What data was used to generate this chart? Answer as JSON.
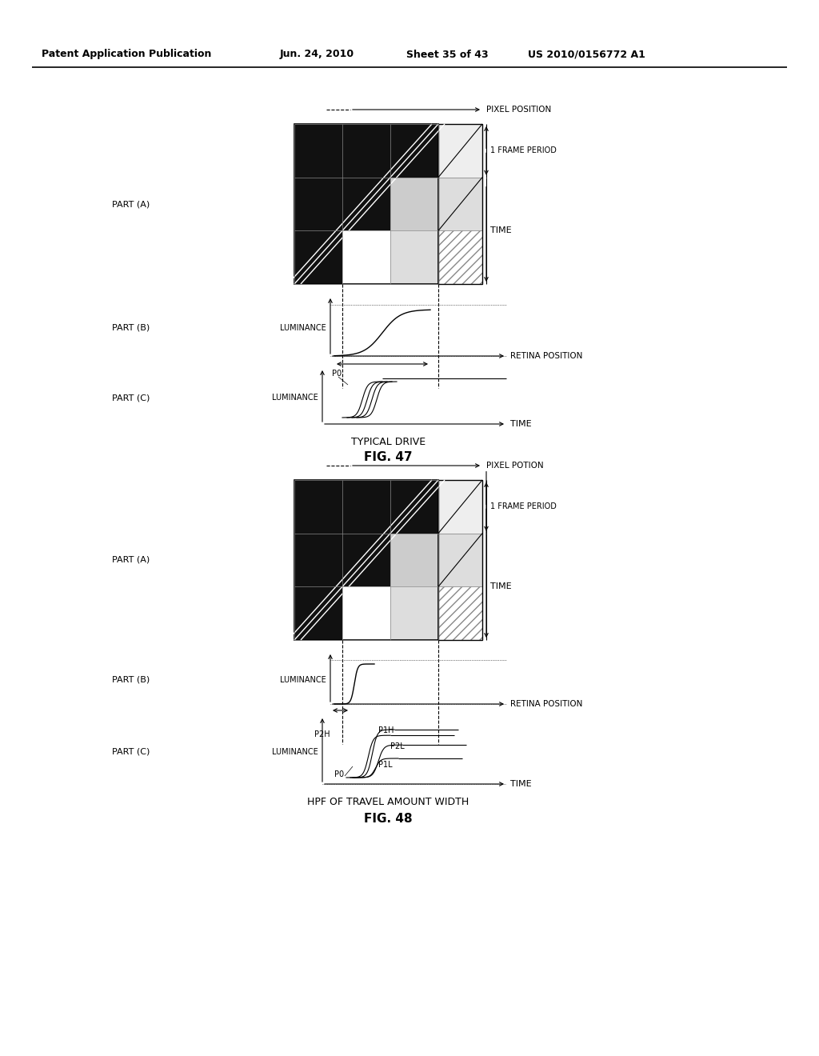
{
  "bg_color": "#ffffff",
  "header_text": "Patent Application Publication",
  "header_date": "Jun. 24, 2010",
  "header_sheet": "Sheet 35 of 43",
  "header_patent": "US 2010/0156772 A1",
  "fig47_label": "FIG. 47",
  "fig48_label": "FIG. 48",
  "fig47_subtitle": "TYPICAL DRIVE",
  "fig48_subtitle": "HPF OF TRAVEL AMOUNT WIDTH",
  "part_a_label": "PART (A)",
  "part_b_label": "PART (B)",
  "part_c_label": "PART (C)",
  "pixel_position_label": "PIXEL POSITION",
  "pixel_potion_label": "PIXEL POTION",
  "frame_period_label": "1 FRAME PERIOD",
  "time_label": "TIME",
  "luminance_label": "LUMINANCE",
  "retina_position_label": "RETINA POSITION",
  "p0_label": "P0",
  "p1h_label": "P1H",
  "p2h_label": "P2H",
  "p2l_label": "P2L",
  "p1l_label": "P1L",
  "grid_dark": "#111111",
  "grid_medium_dark": "#333333",
  "grid_light_gray": "#bbbbbb",
  "grid_white": "#eeeeee"
}
